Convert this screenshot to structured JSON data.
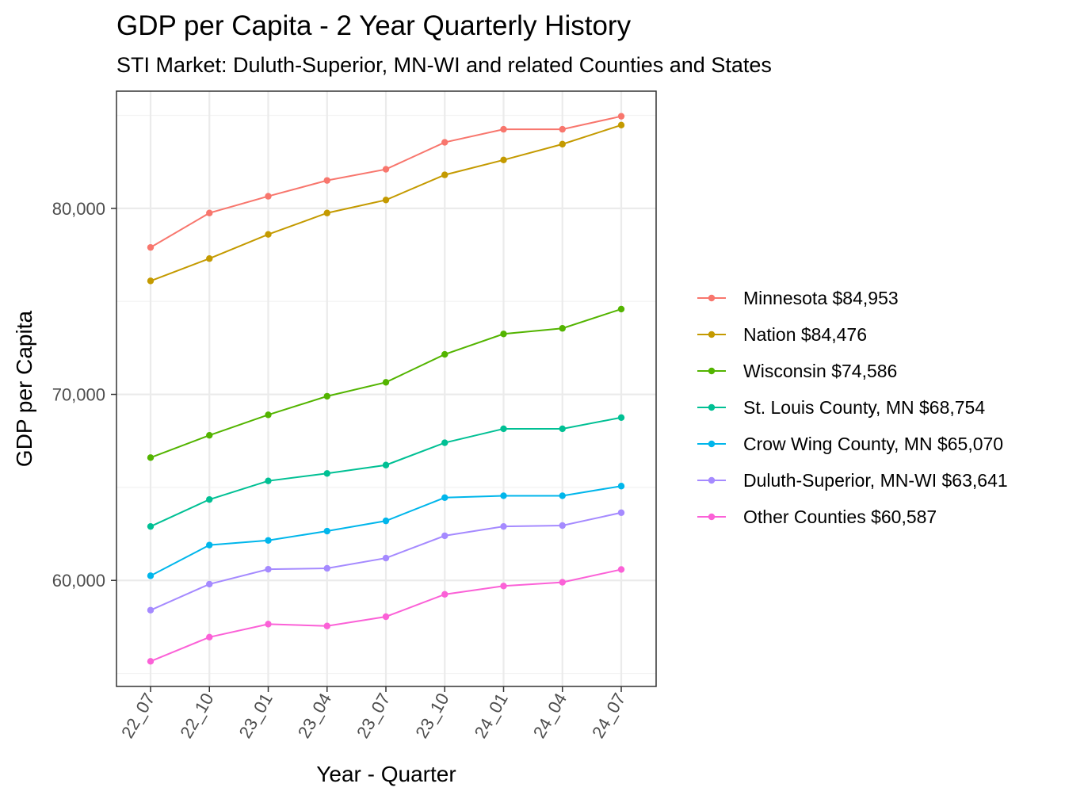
{
  "chart_data": {
    "type": "line",
    "title": "GDP per Capita - 2 Year Quarterly History",
    "subtitle": "STI Market: Duluth-Superior, MN-WI and related Counties and States",
    "xlabel": "Year - Quarter",
    "ylabel": "GDP per Capita",
    "categories": [
      "22_07",
      "22_10",
      "23_01",
      "23_04",
      "23_07",
      "23_10",
      "24_01",
      "24_04",
      "24_07"
    ],
    "ylim": [
      54300,
      86300
    ],
    "yticks": [
      60000,
      70000,
      80000
    ],
    "ytick_labels": [
      "60,000",
      "70,000",
      "80,000"
    ],
    "grid": true,
    "legend_position": "right",
    "series": [
      {
        "name": "Minnesota $84,953",
        "color": "#F8766D",
        "values": [
          77900,
          79750,
          80650,
          81500,
          82100,
          83550,
          84250,
          84250,
          84950
        ]
      },
      {
        "name": "Nation $84,476",
        "color": "#C49A00",
        "values": [
          76100,
          77300,
          78600,
          79750,
          80450,
          81800,
          82600,
          83450,
          84476
        ]
      },
      {
        "name": "Wisconsin $74,586",
        "color": "#53B400",
        "values": [
          66600,
          67800,
          68900,
          69900,
          70650,
          72150,
          73250,
          73550,
          74586
        ]
      },
      {
        "name": "St. Louis County, MN $68,754",
        "color": "#00C094",
        "values": [
          62900,
          64350,
          65350,
          65750,
          66200,
          67400,
          68150,
          68150,
          68754
        ]
      },
      {
        "name": "Crow Wing County, MN $65,070",
        "color": "#00B6EB",
        "values": [
          60250,
          61900,
          62150,
          62650,
          63200,
          64450,
          64550,
          64550,
          65070
        ]
      },
      {
        "name": "Duluth-Superior, MN-WI $63,641",
        "color": "#A58AFF",
        "values": [
          58400,
          59800,
          60600,
          60650,
          61200,
          62400,
          62900,
          62950,
          63641
        ]
      },
      {
        "name": "Other Counties $60,587",
        "color": "#FB61D7",
        "values": [
          55650,
          56950,
          57650,
          57550,
          58050,
          59250,
          59700,
          59900,
          60587
        ]
      }
    ]
  }
}
